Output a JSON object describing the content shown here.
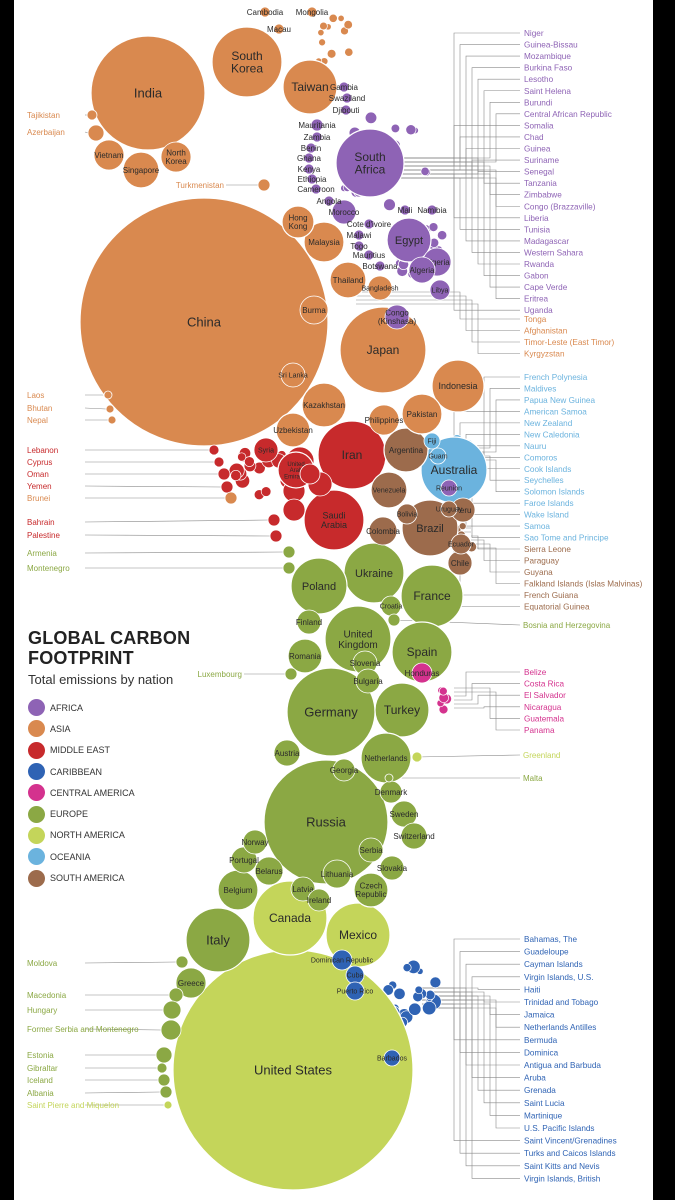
{
  "title_line1": "GLOBAL CARBON",
  "title_line2": "FOOTPRINT",
  "subtitle": "Total emissions by nation",
  "colors": {
    "africa": "#8e63b5",
    "asia": "#d9894f",
    "middle_east": "#c72a2c",
    "caribbean": "#2f63b4",
    "central_america": "#d4328e",
    "europe": "#8ba844",
    "north_america": "#c4d55a",
    "oceania": "#6bb3de",
    "south_america": "#9c6b4c"
  },
  "legend": [
    {
      "label": "AFRICA",
      "color": "#8e63b5"
    },
    {
      "label": "ASIA",
      "color": "#d9894f"
    },
    {
      "label": "MIDDLE EAST",
      "color": "#c72a2c"
    },
    {
      "label": "CARIBBEAN",
      "color": "#2f63b4"
    },
    {
      "label": "CENTRAL AMERICA",
      "color": "#d4328e"
    },
    {
      "label": "EUROPE",
      "color": "#8ba844"
    },
    {
      "label": "NORTH AMERICA",
      "color": "#c4d55a"
    },
    {
      "label": "OCEANIA",
      "color": "#6bb3de"
    },
    {
      "label": "SOUTH AMERICA",
      "color": "#9c6b4c"
    }
  ],
  "bubbles": [
    {
      "label": "United States",
      "region": "north_america"
    },
    {
      "label": "China",
      "region": "asia"
    },
    {
      "label": "Russia",
      "region": "europe"
    },
    {
      "label": "India",
      "region": "asia"
    },
    {
      "label": "Japan",
      "region": "asia"
    },
    {
      "label": "Germany",
      "region": "europe"
    },
    {
      "label": "Canada",
      "region": "north_america"
    },
    {
      "label": "United Kingdom",
      "region": "europe"
    },
    {
      "label": "South Korea",
      "region": "asia"
    },
    {
      "label": "Iran",
      "region": "middle_east"
    },
    {
      "label": "Italy",
      "region": "europe"
    },
    {
      "label": "Mexico",
      "region": "north_america"
    },
    {
      "label": "South Africa",
      "region": "africa"
    },
    {
      "label": "Saudi Arabia",
      "region": "middle_east"
    },
    {
      "label": "Australia",
      "region": "oceania"
    },
    {
      "label": "France",
      "region": "europe"
    },
    {
      "label": "Spain",
      "region": "europe"
    },
    {
      "label": "Ukraine",
      "region": "europe"
    },
    {
      "label": "Poland",
      "region": "europe"
    },
    {
      "label": "Taiwan",
      "region": "asia"
    },
    {
      "label": "Indonesia",
      "region": "asia"
    },
    {
      "label": "Brazil",
      "region": "south_america"
    },
    {
      "label": "Turkey",
      "region": "europe"
    },
    {
      "label": "Egypt",
      "region": "africa"
    },
    {
      "label": "Netherlands",
      "region": "europe"
    },
    {
      "label": "Thailand",
      "region": "asia"
    },
    {
      "label": "Malaysia",
      "region": "asia"
    },
    {
      "label": "Argentina",
      "region": "south_america"
    },
    {
      "label": "Kazakhstan",
      "region": "asia"
    },
    {
      "label": "Venezuela",
      "region": "south_america"
    },
    {
      "label": "Pakistan",
      "region": "asia"
    },
    {
      "label": "Uzbekistan",
      "region": "asia"
    },
    {
      "label": "Belgium",
      "region": "europe"
    },
    {
      "label": "Singapore",
      "region": "asia"
    },
    {
      "label": "Vietnam",
      "region": "asia"
    },
    {
      "label": "North Korea",
      "region": "asia"
    },
    {
      "label": "Hong Kong",
      "region": "asia"
    },
    {
      "label": "Nigeria",
      "region": "africa"
    },
    {
      "label": "Algeria",
      "region": "africa"
    },
    {
      "label": "Romania",
      "region": "europe"
    },
    {
      "label": "Czech Republic",
      "region": "europe"
    },
    {
      "label": "Greece",
      "region": "europe"
    },
    {
      "label": "Philippines",
      "region": "asia"
    },
    {
      "label": "Burma",
      "region": "asia"
    },
    {
      "label": "Bangladesh",
      "region": "asia"
    },
    {
      "label": "Sri Lanka",
      "region": "asia"
    },
    {
      "label": "Congo (Kinshasa)",
      "region": "africa"
    },
    {
      "label": "Chile",
      "region": "south_america"
    },
    {
      "label": "Colombia",
      "region": "south_america"
    },
    {
      "label": "Peru",
      "region": "south_america"
    },
    {
      "label": "Ecuador",
      "region": "south_america"
    },
    {
      "label": "Morocco",
      "region": "africa"
    },
    {
      "label": "Libya",
      "region": "africa"
    },
    {
      "label": "Austria",
      "region": "europe"
    },
    {
      "label": "Belarus",
      "region": "europe"
    },
    {
      "label": "Sweden",
      "region": "europe"
    },
    {
      "label": "Portugal",
      "region": "europe"
    },
    {
      "label": "Finland",
      "region": "europe"
    },
    {
      "label": "Norway",
      "region": "europe"
    },
    {
      "label": "Denmark",
      "region": "europe"
    },
    {
      "label": "Switzerland",
      "region": "europe"
    },
    {
      "label": "Georgia",
      "region": "europe"
    },
    {
      "label": "Serbia",
      "region": "europe"
    },
    {
      "label": "Slovakia",
      "region": "europe"
    },
    {
      "label": "Slovenia",
      "region": "europe"
    },
    {
      "label": "Bulgaria",
      "region": "europe"
    },
    {
      "label": "Croatia",
      "region": "europe"
    },
    {
      "label": "Lithuania",
      "region": "europe"
    },
    {
      "label": "Latvia",
      "region": "europe"
    },
    {
      "label": "Ireland",
      "region": "europe"
    },
    {
      "label": "Honduras",
      "region": "central_america"
    },
    {
      "label": "Dominican Republic",
      "region": "caribbean"
    },
    {
      "label": "Cuba",
      "region": "caribbean"
    },
    {
      "label": "Puerto Rico",
      "region": "caribbean"
    },
    {
      "label": "Barbados",
      "region": "caribbean"
    },
    {
      "label": "Fiji",
      "region": "oceania"
    },
    {
      "label": "Guam",
      "region": "oceania"
    },
    {
      "label": "Reunion",
      "region": "africa"
    },
    {
      "label": "Uruguay",
      "region": "south_america"
    },
    {
      "label": "Bolivia",
      "region": "south_america"
    },
    {
      "label": "Kuwait",
      "region": "middle_east"
    },
    {
      "label": "Iraq",
      "region": "middle_east"
    },
    {
      "label": "Israel",
      "region": "middle_east"
    },
    {
      "label": "Syria",
      "region": "middle_east"
    },
    {
      "label": "Jordan",
      "region": "middle_east"
    },
    {
      "label": "United Arab Emirates",
      "region": "middle_east"
    },
    {
      "label": "Qatar",
      "region": "middle_east"
    },
    {
      "label": "Mauritania",
      "region": "africa"
    },
    {
      "label": "Zambia",
      "region": "africa"
    },
    {
      "label": "Benin",
      "region": "africa"
    },
    {
      "label": "Ghana",
      "region": "africa"
    },
    {
      "label": "Kenya",
      "region": "africa"
    },
    {
      "label": "Ethiopia",
      "region": "africa"
    },
    {
      "label": "Cameroon",
      "region": "africa"
    },
    {
      "label": "Angola",
      "region": "africa"
    },
    {
      "label": "Mali",
      "region": "africa"
    },
    {
      "label": "Namibia",
      "region": "africa"
    },
    {
      "label": "Cote d'ivoire",
      "region": "africa"
    },
    {
      "label": "Malawi",
      "region": "africa"
    },
    {
      "label": "Togo",
      "region": "africa"
    },
    {
      "label": "Mauritius",
      "region": "africa"
    },
    {
      "label": "Botswana",
      "region": "africa"
    },
    {
      "label": "Gambia",
      "region": "africa"
    },
    {
      "label": "Swaziland",
      "region": "africa"
    },
    {
      "label": "Djibouti",
      "region": "africa"
    },
    {
      "label": "Cambodia",
      "region": "asia"
    },
    {
      "label": "Mongolia",
      "region": "asia"
    },
    {
      "label": "Macau",
      "region": "asia"
    },
    {
      "label": "Tajikistan",
      "region": "asia"
    },
    {
      "label": "Azerbaijan",
      "region": "asia"
    },
    {
      "label": "Turkmenistan",
      "region": "asia"
    },
    {
      "label": "Laos",
      "region": "asia"
    },
    {
      "label": "Bhutan",
      "region": "asia"
    },
    {
      "label": "Nepal",
      "region": "asia"
    },
    {
      "label": "Lebanon",
      "region": "middle_east"
    },
    {
      "label": "Cyprus",
      "region": "middle_east"
    },
    {
      "label": "Oman",
      "region": "middle_east"
    },
    {
      "label": "Yemen",
      "region": "middle_east"
    },
    {
      "label": "Brunei",
      "region": "asia"
    },
    {
      "label": "Bahrain",
      "region": "middle_east"
    },
    {
      "label": "Palestine",
      "region": "middle_east"
    },
    {
      "label": "Armenia",
      "region": "europe"
    },
    {
      "label": "Montenegro",
      "region": "europe"
    },
    {
      "label": "Luxembourg",
      "region": "europe"
    },
    {
      "label": "Moldova",
      "region": "europe"
    },
    {
      "label": "Macedonia",
      "region": "europe"
    },
    {
      "label": "Hungary",
      "region": "europe"
    },
    {
      "label": "Former Serbia and Montenegro",
      "region": "europe"
    },
    {
      "label": "Estonia",
      "region": "europe"
    },
    {
      "label": "Gibraltar",
      "region": "europe"
    },
    {
      "label": "Iceland",
      "region": "europe"
    },
    {
      "label": "Albania",
      "region": "europe"
    },
    {
      "label": "Saint Pierre and Miquelon",
      "region": "north_america"
    },
    {
      "label": "Bosnia and Herzegovina",
      "region": "europe"
    },
    {
      "label": "Greenland",
      "region": "north_america"
    },
    {
      "label": "Malta",
      "region": "europe"
    }
  ],
  "right_labels": [
    {
      "label": "Niger",
      "region": "africa"
    },
    {
      "label": "Guinea-Bissau",
      "region": "africa"
    },
    {
      "label": "Mozambique",
      "region": "africa"
    },
    {
      "label": "Burkina Faso",
      "region": "africa"
    },
    {
      "label": "Lesotho",
      "region": "africa"
    },
    {
      "label": "Saint Helena",
      "region": "africa"
    },
    {
      "label": "Burundi",
      "region": "africa"
    },
    {
      "label": "Central African Republic",
      "region": "africa"
    },
    {
      "label": "Somalia",
      "region": "africa"
    },
    {
      "label": "Chad",
      "region": "africa"
    },
    {
      "label": "Guinea",
      "region": "africa"
    },
    {
      "label": "Suriname",
      "region": "africa"
    },
    {
      "label": "Senegal",
      "region": "africa"
    },
    {
      "label": "Tanzania",
      "region": "africa"
    },
    {
      "label": "Zimbabwe",
      "region": "africa"
    },
    {
      "label": "Congo (Brazzaville)",
      "region": "africa"
    },
    {
      "label": "Liberia",
      "region": "africa"
    },
    {
      "label": "Tunisia",
      "region": "africa"
    },
    {
      "label": "Madagascar",
      "region": "africa"
    },
    {
      "label": "Western Sahara",
      "region": "africa"
    },
    {
      "label": "Rwanda",
      "region": "africa"
    },
    {
      "label": "Gabon",
      "region": "africa"
    },
    {
      "label": "Cape Verde",
      "region": "africa"
    },
    {
      "label": "Eritrea",
      "region": "africa"
    },
    {
      "label": "Uganda",
      "region": "africa"
    },
    {
      "label": "Tonga",
      "region": "asia"
    },
    {
      "label": "Afghanistan",
      "region": "asia"
    },
    {
      "label": "Timor-Leste (East Timor)",
      "region": "asia"
    },
    {
      "label": "Kyrgyzstan",
      "region": "asia"
    },
    {
      "label": "French Polynesia",
      "region": "oceania"
    },
    {
      "label": "Maldives",
      "region": "oceania"
    },
    {
      "label": "Papua New Guinea",
      "region": "oceania"
    },
    {
      "label": "American Samoa",
      "region": "oceania"
    },
    {
      "label": "New Zealand",
      "region": "oceania"
    },
    {
      "label": "New Caledonia",
      "region": "oceania"
    },
    {
      "label": "Nauru",
      "region": "oceania"
    },
    {
      "label": "Comoros",
      "region": "oceania"
    },
    {
      "label": "Cook Islands",
      "region": "oceania"
    },
    {
      "label": "Seychelles",
      "region": "oceania"
    },
    {
      "label": "Solomon Islands",
      "region": "oceania"
    },
    {
      "label": "Faroe Islands",
      "region": "oceania"
    },
    {
      "label": "Wake Island",
      "region": "oceania"
    },
    {
      "label": "Samoa",
      "region": "oceania"
    },
    {
      "label": "Sao Tome and Principe",
      "region": "oceania"
    },
    {
      "label": "Sierra Leone",
      "region": "south_america"
    },
    {
      "label": "Paraguay",
      "region": "south_america"
    },
    {
      "label": "Guyana",
      "region": "south_america"
    },
    {
      "label": "Falkland Islands (Islas Malvinas)",
      "region": "south_america"
    },
    {
      "label": "French Guiana",
      "region": "south_america"
    },
    {
      "label": "Equatorial Guinea",
      "region": "south_america"
    },
    {
      "label": "Belize",
      "region": "central_america"
    },
    {
      "label": "Costa Rica",
      "region": "central_america"
    },
    {
      "label": "El Salvador",
      "region": "central_america"
    },
    {
      "label": "Nicaragua",
      "region": "central_america"
    },
    {
      "label": "Guatemala",
      "region": "central_america"
    },
    {
      "label": "Panama",
      "region": "central_america"
    },
    {
      "label": "Bahamas, The",
      "region": "caribbean"
    },
    {
      "label": "Guadeloupe",
      "region": "caribbean"
    },
    {
      "label": "Cayman Islands",
      "region": "caribbean"
    },
    {
      "label": "Virgin Islands, U.S.",
      "region": "caribbean"
    },
    {
      "label": "Haiti",
      "region": "caribbean"
    },
    {
      "label": "Trinidad and Tobago",
      "region": "caribbean"
    },
    {
      "label": "Jamaica",
      "region": "caribbean"
    },
    {
      "label": "Netherlands Antilles",
      "region": "caribbean"
    },
    {
      "label": "Bermuda",
      "region": "caribbean"
    },
    {
      "label": "Dominica",
      "region": "caribbean"
    },
    {
      "label": "Antigua and Barbuda",
      "region": "caribbean"
    },
    {
      "label": "Aruba",
      "region": "caribbean"
    },
    {
      "label": "Grenada",
      "region": "caribbean"
    },
    {
      "label": "Saint Lucia",
      "region": "caribbean"
    },
    {
      "label": "Martinique",
      "region": "caribbean"
    },
    {
      "label": "U.S. Pacific Islands",
      "region": "caribbean"
    },
    {
      "label": "Saint Vincent/Grenadines",
      "region": "caribbean"
    },
    {
      "label": "Turks and Caicos Islands",
      "region": "caribbean"
    },
    {
      "label": "Saint Kitts and Nevis",
      "region": "caribbean"
    },
    {
      "label": "Virgin Islands, British",
      "region": "caribbean"
    }
  ]
}
